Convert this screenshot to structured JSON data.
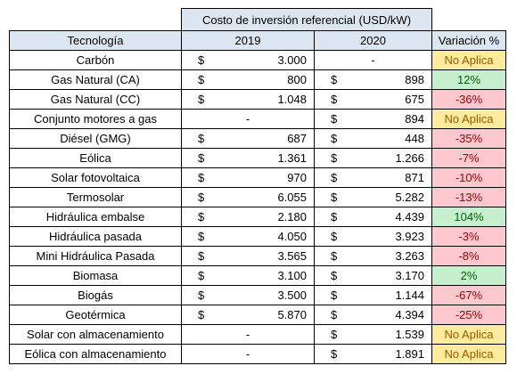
{
  "table": {
    "super_header": "Costo de inversión referencial (USD/kW)",
    "headers": {
      "tech": "Tecnología",
      "y2019": "2019",
      "y2020": "2020",
      "var": "Variación %"
    },
    "currency": "$",
    "dash": "-",
    "rows": [
      {
        "tech": "Carbón",
        "v2019": "3.000",
        "v2020": null,
        "var": "No Aplica",
        "status": "na"
      },
      {
        "tech": "Gas Natural (CA)",
        "v2019": "800",
        "v2020": "898",
        "var": "12%",
        "status": "pos"
      },
      {
        "tech": "Gas Natural (CC)",
        "v2019": "1.048",
        "v2020": "675",
        "var": "-36%",
        "status": "neg"
      },
      {
        "tech": "Conjunto motores a gas",
        "v2019": null,
        "v2020": "894",
        "var": "No Aplica",
        "status": "na"
      },
      {
        "tech": "Diésel (GMG)",
        "v2019": "687",
        "v2020": "448",
        "var": "-35%",
        "status": "neg"
      },
      {
        "tech": "Eólica",
        "v2019": "1.361",
        "v2020": "1.266",
        "var": "-7%",
        "status": "neg"
      },
      {
        "tech": "Solar fotovoltaica",
        "v2019": "970",
        "v2020": "871",
        "var": "-10%",
        "status": "neg"
      },
      {
        "tech": "Termosolar",
        "v2019": "6.055",
        "v2020": "5.282",
        "var": "-13%",
        "status": "neg"
      },
      {
        "tech": "Hidráulica embalse",
        "v2019": "2.180",
        "v2020": "4.439",
        "var": "104%",
        "status": "pos"
      },
      {
        "tech": "Hidráulica pasada",
        "v2019": "4.050",
        "v2020": "3.923",
        "var": "-3%",
        "status": "neg"
      },
      {
        "tech": "Mini Hidráulica Pasada",
        "v2019": "3.565",
        "v2020": "3.263",
        "var": "-8%",
        "status": "neg"
      },
      {
        "tech": "Biomasa",
        "v2019": "3.100",
        "v2020": "3.170",
        "var": "2%",
        "status": "pos"
      },
      {
        "tech": "Biogás",
        "v2019": "3.500",
        "v2020": "1.144",
        "var": "-67%",
        "status": "neg"
      },
      {
        "tech": "Geotérmica",
        "v2019": "5.870",
        "v2020": "4.394",
        "var": "-25%",
        "status": "neg"
      },
      {
        "tech": "Solar con almacenamiento",
        "v2019": null,
        "v2020": "1.539",
        "var": "No Aplica",
        "status": "na"
      },
      {
        "tech": "Eólica con almacenamiento",
        "v2019": null,
        "v2020": "1.891",
        "var": "No Aplica",
        "status": "na"
      }
    ]
  }
}
